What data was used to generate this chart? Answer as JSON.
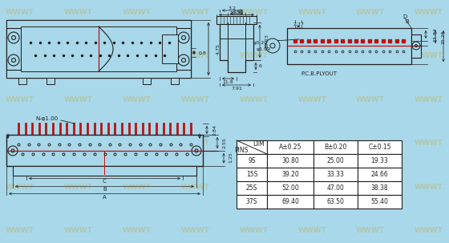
{
  "bg_color": "#a8d8ea",
  "line_color": "#222222",
  "red_color": "#bb1111",
  "watermark_color": "#c8a020",
  "table": {
    "col_headers": [
      "PINS",
      "DIM",
      "A±0.25",
      "B±0.20",
      "C±0.15"
    ],
    "rows": [
      [
        "9S",
        "30.80",
        "25.00",
        "19.33"
      ],
      [
        "15S",
        "39.20",
        "33.33",
        "24.66"
      ],
      [
        "25S",
        "52.00",
        "47.00",
        "38.38"
      ],
      [
        "37S",
        "69.40",
        "63.50",
        "55.40"
      ]
    ]
  }
}
